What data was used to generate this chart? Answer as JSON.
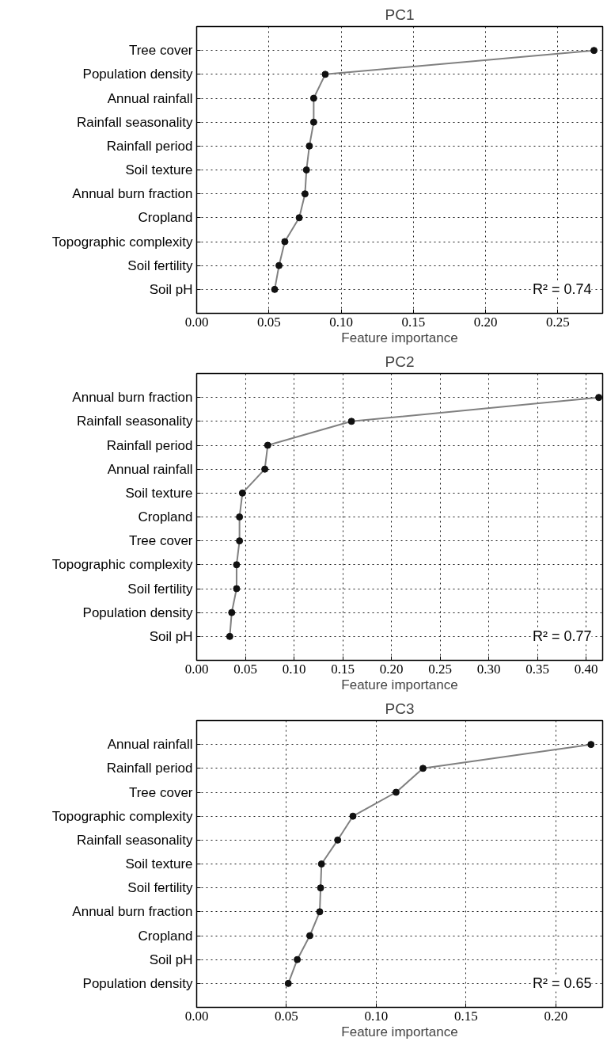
{
  "chart_data": [
    {
      "type": "line",
      "title": "PC1",
      "xlabel": "Feature importance",
      "orientation": "horizontal",
      "categories": [
        "Tree cover",
        "Population density",
        "Annual rainfall",
        "Rainfall seasonality",
        "Rainfall period",
        "Soil texture",
        "Annual burn fraction",
        "Cropland",
        "Topographic complexity",
        "Soil fertility",
        "Soil pH"
      ],
      "series": [
        {
          "color": "#808080",
          "values": [
            0.275,
            0.089,
            0.081,
            0.081,
            0.078,
            0.076,
            0.075,
            0.071,
            0.061,
            0.057,
            0.054
          ]
        }
      ],
      "xlim": [
        0,
        0.281
      ],
      "xticks": [
        {
          "value": 0,
          "label": "0.00"
        },
        {
          "value": 0.05,
          "label": "0.05"
        },
        {
          "value": 0.1,
          "label": "0.10"
        },
        {
          "value": 0.15,
          "label": "0.15"
        },
        {
          "value": 0.2,
          "label": "0.20"
        },
        {
          "value": 0.25,
          "label": "0.25"
        }
      ],
      "grid": true,
      "marker": "circle",
      "annotations": [
        "R² = 0.74"
      ]
    },
    {
      "type": "line",
      "title": "PC2",
      "xlabel": "Feature importance",
      "orientation": "horizontal",
      "categories": [
        "Annual burn fraction",
        "Rainfall seasonality",
        "Rainfall period",
        "Annual rainfall",
        "Soil texture",
        "Cropland",
        "Tree cover",
        "Topographic complexity",
        "Soil fertility",
        "Population density",
        "Soil pH"
      ],
      "series": [
        {
          "color": "#808080",
          "values": [
            0.413,
            0.159,
            0.073,
            0.07,
            0.047,
            0.044,
            0.044,
            0.041,
            0.041,
            0.036,
            0.034
          ]
        }
      ],
      "xlim": [
        0,
        0.417
      ],
      "xticks": [
        {
          "value": 0,
          "label": "0.00"
        },
        {
          "value": 0.05,
          "label": "0.05"
        },
        {
          "value": 0.1,
          "label": "0.10"
        },
        {
          "value": 0.15,
          "label": "0.15"
        },
        {
          "value": 0.2,
          "label": "0.20"
        },
        {
          "value": 0.25,
          "label": "0.25"
        },
        {
          "value": 0.3,
          "label": "0.30"
        },
        {
          "value": 0.35,
          "label": "0.35"
        },
        {
          "value": 0.4,
          "label": "0.40"
        }
      ],
      "grid": true,
      "marker": "circle",
      "annotations": [
        "R² = 0.77"
      ]
    },
    {
      "type": "line",
      "title": "PC3",
      "xlabel": "Feature importance",
      "orientation": "horizontal",
      "categories": [
        "Annual rainfall",
        "Rainfall period",
        "Tree cover",
        "Topographic complexity",
        "Rainfall seasonality",
        "Soil texture",
        "Soil fertility",
        "Annual burn fraction",
        "Cropland",
        "Soil pH",
        "Population density"
      ],
      "series": [
        {
          "color": "#808080",
          "values": [
            0.2195,
            0.126,
            0.111,
            0.087,
            0.0785,
            0.0695,
            0.069,
            0.0685,
            0.063,
            0.056,
            0.051
          ]
        }
      ],
      "xlim": [
        0,
        0.226
      ],
      "xticks": [
        {
          "value": 0,
          "label": "0.00"
        },
        {
          "value": 0.05,
          "label": "0.05"
        },
        {
          "value": 0.1,
          "label": "0.10"
        },
        {
          "value": 0.15,
          "label": "0.15"
        },
        {
          "value": 0.2,
          "label": "0.20"
        }
      ],
      "grid": true,
      "marker": "circle",
      "annotations": [
        "R² = 0.65"
      ]
    }
  ]
}
